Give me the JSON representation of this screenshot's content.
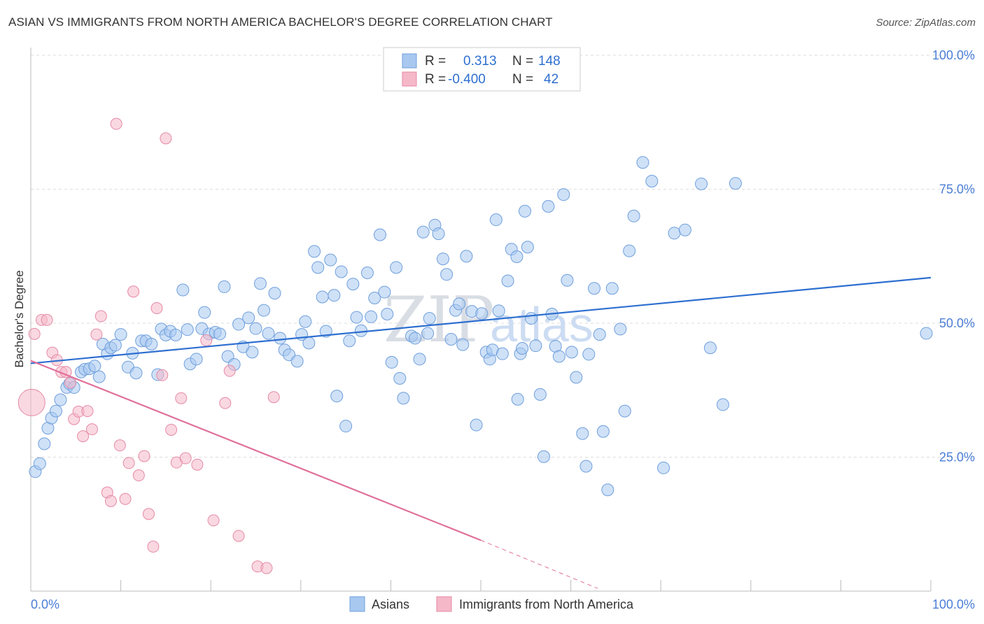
{
  "header": {
    "title": "ASIAN VS IMMIGRANTS FROM NORTH AMERICA BACHELOR'S DEGREE CORRELATION CHART",
    "source": "Source: ZipAtlas.com"
  },
  "watermark": {
    "part1": "ZIP",
    "part2": "atlas"
  },
  "legend": {
    "rows": [
      {
        "r_label": "R =",
        "r_value": "0.313",
        "n_label": "N =",
        "n_value": "148",
        "color": "#a8c8f0"
      },
      {
        "r_label": "R =",
        "r_value": "-0.400",
        "n_label": "N =",
        "n_value": "42",
        "color": "#f5b8c8"
      }
    ]
  },
  "chart_data": {
    "type": "scatter",
    "title": "ASIAN VS IMMIGRANTS FROM NORTH AMERICA BACHELOR'S DEGREE CORRELATION CHART",
    "xlabel": "",
    "ylabel": "Bachelor's Degree",
    "xlim": [
      0,
      100
    ],
    "ylim": [
      0,
      100
    ],
    "x_tick_labels": [
      "0.0%",
      "100.0%"
    ],
    "y_tick_labels": [
      {
        "value": 100,
        "label": "100.0%"
      },
      {
        "value": 75,
        "label": "75.0%"
      },
      {
        "value": 50,
        "label": "50.0%"
      },
      {
        "value": 25,
        "label": "25.0%"
      }
    ],
    "grid": true,
    "legend_position": "bottom",
    "series": [
      {
        "name": "Asians",
        "color": "#a8c8f0",
        "stroke": "#6f9fdc",
        "trend": {
          "x": [
            0,
            100
          ],
          "y": [
            42.5,
            58.5
          ],
          "color": "#2e6fd0"
        },
        "points": [
          [
            0.5,
            22.3
          ],
          [
            1.0,
            23.8
          ],
          [
            1.5,
            27.5
          ],
          [
            1.9,
            30.4
          ],
          [
            2.3,
            32.3
          ],
          [
            2.8,
            33.6
          ],
          [
            3.3,
            35.7
          ],
          [
            4.0,
            38.0
          ],
          [
            4.3,
            38.7
          ],
          [
            4.8,
            38.0
          ],
          [
            5.6,
            40.9
          ],
          [
            6.0,
            41.4
          ],
          [
            6.5,
            41.5
          ],
          [
            7.1,
            42.0
          ],
          [
            7.6,
            40.0
          ],
          [
            8.0,
            46.1
          ],
          [
            8.5,
            44.3
          ],
          [
            8.9,
            45.4
          ],
          [
            9.4,
            45.9
          ],
          [
            10.0,
            47.9
          ],
          [
            10.8,
            41.8
          ],
          [
            11.3,
            44.4
          ],
          [
            11.7,
            40.7
          ],
          [
            12.3,
            46.7
          ],
          [
            12.8,
            46.7
          ],
          [
            13.4,
            46.1
          ],
          [
            14.1,
            40.4
          ],
          [
            14.5,
            48.9
          ],
          [
            15.0,
            47.8
          ],
          [
            15.5,
            48.5
          ],
          [
            16.1,
            47.8
          ],
          [
            16.9,
            56.2
          ],
          [
            17.4,
            48.8
          ],
          [
            17.7,
            42.4
          ],
          [
            18.4,
            43.3
          ],
          [
            19.0,
            49.0
          ],
          [
            19.3,
            52.0
          ],
          [
            19.8,
            48.0
          ],
          [
            20.5,
            48.3
          ],
          [
            21.0,
            48.0
          ],
          [
            21.5,
            56.8
          ],
          [
            21.9,
            43.8
          ],
          [
            22.6,
            42.3
          ],
          [
            23.1,
            49.8
          ],
          [
            23.6,
            45.6
          ],
          [
            24.2,
            51.0
          ],
          [
            24.6,
            44.6
          ],
          [
            25.0,
            49.0
          ],
          [
            25.5,
            57.4
          ],
          [
            25.9,
            52.4
          ],
          [
            26.4,
            48.1
          ],
          [
            27.1,
            55.6
          ],
          [
            27.7,
            47.2
          ],
          [
            28.2,
            45.0
          ],
          [
            28.7,
            44.1
          ],
          [
            29.6,
            42.9
          ],
          [
            30.1,
            47.9
          ],
          [
            30.5,
            50.3
          ],
          [
            30.9,
            46.3
          ],
          [
            31.5,
            63.4
          ],
          [
            31.9,
            60.4
          ],
          [
            32.4,
            54.9
          ],
          [
            32.8,
            48.5
          ],
          [
            33.3,
            61.8
          ],
          [
            33.7,
            55.2
          ],
          [
            34.0,
            36.4
          ],
          [
            34.5,
            59.6
          ],
          [
            35.0,
            30.8
          ],
          [
            35.4,
            46.7
          ],
          [
            35.8,
            57.3
          ],
          [
            36.2,
            51.1
          ],
          [
            36.7,
            48.6
          ],
          [
            37.4,
            59.4
          ],
          [
            37.8,
            51.2
          ],
          [
            38.2,
            54.7
          ],
          [
            38.8,
            66.5
          ],
          [
            39.3,
            55.8
          ],
          [
            39.6,
            51.7
          ],
          [
            40.1,
            42.7
          ],
          [
            40.6,
            60.4
          ],
          [
            41.0,
            39.7
          ],
          [
            41.4,
            36.0
          ],
          [
            42.3,
            47.6
          ],
          [
            42.7,
            47.2
          ],
          [
            43.2,
            43.3
          ],
          [
            43.6,
            67.0
          ],
          [
            44.1,
            48.1
          ],
          [
            44.3,
            50.9
          ],
          [
            44.9,
            68.3
          ],
          [
            45.3,
            66.7
          ],
          [
            45.8,
            62.0
          ],
          [
            46.2,
            59.1
          ],
          [
            46.7,
            47.0
          ],
          [
            47.2,
            52.4
          ],
          [
            47.6,
            53.6
          ],
          [
            48.0,
            46.0
          ],
          [
            48.4,
            62.5
          ],
          [
            49.0,
            52.2
          ],
          [
            49.5,
            31.0
          ],
          [
            50.1,
            51.8
          ],
          [
            50.6,
            44.6
          ],
          [
            51.0,
            43.3
          ],
          [
            51.3,
            45.0
          ],
          [
            51.7,
            69.3
          ],
          [
            52.0,
            52.3
          ],
          [
            52.4,
            44.3
          ],
          [
            53.0,
            57.9
          ],
          [
            53.4,
            63.8
          ],
          [
            54.0,
            62.4
          ],
          [
            54.4,
            44.3
          ],
          [
            54.9,
            70.9
          ],
          [
            55.2,
            64.2
          ],
          [
            55.6,
            50.9
          ],
          [
            56.1,
            45.8
          ],
          [
            56.6,
            36.7
          ],
          [
            57.0,
            25.1
          ],
          [
            57.5,
            71.8
          ],
          [
            57.9,
            51.7
          ],
          [
            58.3,
            45.7
          ],
          [
            58.7,
            43.8
          ],
          [
            59.2,
            74.0
          ],
          [
            59.6,
            58.0
          ],
          [
            60.1,
            44.6
          ],
          [
            60.6,
            39.9
          ],
          [
            61.3,
            29.4
          ],
          [
            61.7,
            23.3
          ],
          [
            62.6,
            56.5
          ],
          [
            63.2,
            47.9
          ],
          [
            63.6,
            29.8
          ],
          [
            64.1,
            18.9
          ],
          [
            64.6,
            56.5
          ],
          [
            66.0,
            33.6
          ],
          [
            66.5,
            63.5
          ],
          [
            67.0,
            70.0
          ],
          [
            68.0,
            80.0
          ],
          [
            69.0,
            76.5
          ],
          [
            70.3,
            23.0
          ],
          [
            71.5,
            66.8
          ],
          [
            72.7,
            67.4
          ],
          [
            74.5,
            76.0
          ],
          [
            75.5,
            45.4
          ],
          [
            76.9,
            34.8
          ],
          [
            78.3,
            76.1
          ],
          [
            99.5,
            48.1
          ],
          [
            54.1,
            35.8
          ],
          [
            54.6,
            45.3
          ],
          [
            62.0,
            44.2
          ],
          [
            65.5,
            48.9
          ]
        ]
      },
      {
        "name": "Immigrants from North America",
        "color": "#f5b8c8",
        "stroke": "#e58aa6",
        "trend": {
          "x": [
            0,
            50
          ],
          "y": [
            43.0,
            9.5
          ],
          "color": "#e0709a",
          "dashed_to": {
            "x": 63,
            "y": 0.5
          }
        },
        "points": [
          [
            0.4,
            48.0
          ],
          [
            1.2,
            50.6
          ],
          [
            1.8,
            50.6
          ],
          [
            2.4,
            44.5
          ],
          [
            2.9,
            43.1
          ],
          [
            3.4,
            40.9
          ],
          [
            3.9,
            40.9
          ],
          [
            4.4,
            38.9
          ],
          [
            4.8,
            32.1
          ],
          [
            5.3,
            33.5
          ],
          [
            5.8,
            28.9
          ],
          [
            6.3,
            33.6
          ],
          [
            6.8,
            30.2
          ],
          [
            7.3,
            47.9
          ],
          [
            7.8,
            51.3
          ],
          [
            8.5,
            18.4
          ],
          [
            8.9,
            16.8
          ],
          [
            9.5,
            87.2
          ],
          [
            9.9,
            27.2
          ],
          [
            10.5,
            17.2
          ],
          [
            10.9,
            23.9
          ],
          [
            11.4,
            55.9
          ],
          [
            12.0,
            21.6
          ],
          [
            12.6,
            25.2
          ],
          [
            13.1,
            14.4
          ],
          [
            13.6,
            8.3
          ],
          [
            14.0,
            52.8
          ],
          [
            14.6,
            40.3
          ],
          [
            15.0,
            84.5
          ],
          [
            15.6,
            30.1
          ],
          [
            16.2,
            24.0
          ],
          [
            16.7,
            36.0
          ],
          [
            17.2,
            24.8
          ],
          [
            18.5,
            23.6
          ],
          [
            19.5,
            46.8
          ],
          [
            20.3,
            13.2
          ],
          [
            21.6,
            35.1
          ],
          [
            22.1,
            41.1
          ],
          [
            23.1,
            10.3
          ],
          [
            25.2,
            4.6
          ],
          [
            26.2,
            4.3
          ],
          [
            27.0,
            36.2
          ]
        ],
        "big_point": [
          0.1,
          35.2
        ]
      }
    ]
  },
  "bottom_legend": {
    "items": [
      {
        "label": "Asians",
        "color": "#a8c8f0",
        "stroke": "#6f9fdc"
      },
      {
        "label": "Immigrants from North America",
        "color": "#f5b8c8",
        "stroke": "#e58aa6"
      }
    ]
  }
}
